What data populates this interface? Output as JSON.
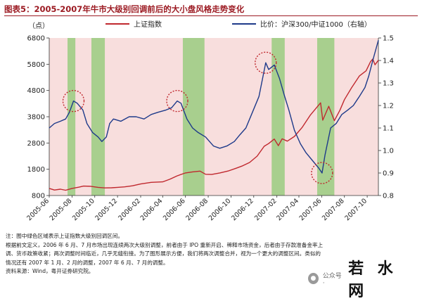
{
  "figure_title": "图表5：2005-2007年牛市大级别回调前后的大小盘风格走势变化",
  "chart_data": {
    "type": "line",
    "left_axis_unit": "（点）",
    "x_tick_labels": [
      "2005-06",
      "2005-08",
      "2005-10",
      "2005-12",
      "2006-02",
      "2006-04",
      "2006-06",
      "2006-08",
      "2006-10",
      "2006-12",
      "2007-02",
      "2007-04",
      "2007-06",
      "2007-08",
      "2007-10"
    ],
    "y_left": {
      "range": [
        800,
        6800
      ],
      "ticks": [
        800,
        1800,
        2800,
        3800,
        4800,
        5800,
        6800
      ]
    },
    "y_right": {
      "range": [
        0.8,
        1.5
      ],
      "ticks": [
        0.8,
        0.9,
        1.0,
        1.1,
        1.2,
        1.3,
        1.4,
        1.5
      ]
    },
    "background_shading": "#f8dedd",
    "highlight_color": "#a8cf8e",
    "highlighted_periods": [
      [
        "2005-07-20",
        "2005-08-10"
      ],
      [
        "2005-09-22",
        "2005-10-28"
      ],
      [
        "2006-05-25",
        "2006-07-22"
      ],
      [
        "2007-01-18",
        "2007-02-22"
      ],
      [
        "2007-05-20",
        "2007-07-05"
      ]
    ],
    "circled_points": [
      "2005-08-05",
      "2005-10-15",
      "2006-05-10",
      "2007-01-02",
      "2007-06-02"
    ],
    "series": [
      {
        "name": "上证指数",
        "axis": "left",
        "color": "#c0282e",
        "points": [
          [
            "2005-06-01",
            1070
          ],
          [
            "2005-06-15",
            1010
          ],
          [
            "2005-07-01",
            1040
          ],
          [
            "2005-07-15",
            1000
          ],
          [
            "2005-08-01",
            1070
          ],
          [
            "2005-08-20",
            1120
          ],
          [
            "2005-09-01",
            1160
          ],
          [
            "2005-09-20",
            1150
          ],
          [
            "2005-10-10",
            1110
          ],
          [
            "2005-10-28",
            1090
          ],
          [
            "2005-11-15",
            1095
          ],
          [
            "2005-12-01",
            1110
          ],
          [
            "2005-12-20",
            1130
          ],
          [
            "2006-01-10",
            1170
          ],
          [
            "2006-02-01",
            1240
          ],
          [
            "2006-03-01",
            1300
          ],
          [
            "2006-04-01",
            1320
          ],
          [
            "2006-04-20",
            1420
          ],
          [
            "2006-05-10",
            1550
          ],
          [
            "2006-06-01",
            1660
          ],
          [
            "2006-06-20",
            1700
          ],
          [
            "2006-07-10",
            1730
          ],
          [
            "2006-07-25",
            1610
          ],
          [
            "2006-08-10",
            1600
          ],
          [
            "2006-09-01",
            1660
          ],
          [
            "2006-09-25",
            1740
          ],
          [
            "2006-10-15",
            1840
          ],
          [
            "2006-11-01",
            1930
          ],
          [
            "2006-11-20",
            2060
          ],
          [
            "2006-12-10",
            2300
          ],
          [
            "2006-12-29",
            2675
          ],
          [
            "2007-01-10",
            2780
          ],
          [
            "2007-01-25",
            2950
          ],
          [
            "2007-02-05",
            2700
          ],
          [
            "2007-02-15",
            2960
          ],
          [
            "2007-03-01",
            2870
          ],
          [
            "2007-03-20",
            3050
          ],
          [
            "2007-04-10",
            3400
          ],
          [
            "2007-05-01",
            3850
          ],
          [
            "2007-05-29",
            4330
          ],
          [
            "2007-06-04",
            3670
          ],
          [
            "2007-06-20",
            4200
          ],
          [
            "2007-07-05",
            3650
          ],
          [
            "2007-07-20",
            4050
          ],
          [
            "2007-08-01",
            4450
          ],
          [
            "2007-08-20",
            4900
          ],
          [
            "2007-09-10",
            5350
          ],
          [
            "2007-09-28",
            5550
          ],
          [
            "2007-10-10",
            5900
          ],
          [
            "2007-10-16",
            6000
          ],
          [
            "2007-10-22",
            5780
          ],
          [
            "2007-10-31",
            5950
          ]
        ]
      },
      {
        "name": "比价：沪深300/中证1000（右轴）",
        "axis": "right",
        "color": "#1e3a8a",
        "points": [
          [
            "2005-06-01",
            1.1
          ],
          [
            "2005-06-15",
            1.12
          ],
          [
            "2005-07-01",
            1.13
          ],
          [
            "2005-07-15",
            1.14
          ],
          [
            "2005-07-25",
            1.17
          ],
          [
            "2005-08-05",
            1.22
          ],
          [
            "2005-08-15",
            1.21
          ],
          [
            "2005-08-30",
            1.18
          ],
          [
            "2005-09-10",
            1.12
          ],
          [
            "2005-09-25",
            1.08
          ],
          [
            "2005-10-10",
            1.06
          ],
          [
            "2005-10-20",
            1.04
          ],
          [
            "2005-11-01",
            1.06
          ],
          [
            "2005-11-10",
            1.12
          ],
          [
            "2005-11-20",
            1.14
          ],
          [
            "2005-12-10",
            1.13
          ],
          [
            "2006-01-01",
            1.15
          ],
          [
            "2006-01-20",
            1.15
          ],
          [
            "2006-02-10",
            1.14
          ],
          [
            "2006-03-01",
            1.16
          ],
          [
            "2006-03-20",
            1.17
          ],
          [
            "2006-04-10",
            1.18
          ],
          [
            "2006-04-25",
            1.19
          ],
          [
            "2006-05-10",
            1.22
          ],
          [
            "2006-05-20",
            1.21
          ],
          [
            "2006-06-05",
            1.14
          ],
          [
            "2006-06-20",
            1.1
          ],
          [
            "2006-07-05",
            1.08
          ],
          [
            "2006-07-25",
            1.06
          ],
          [
            "2006-08-15",
            1.02
          ],
          [
            "2006-09-01",
            1.01
          ],
          [
            "2006-09-20",
            1.02
          ],
          [
            "2006-10-10",
            1.04
          ],
          [
            "2006-10-25",
            1.07
          ],
          [
            "2006-11-10",
            1.1
          ],
          [
            "2006-11-25",
            1.16
          ],
          [
            "2006-12-15",
            1.24
          ],
          [
            "2007-01-02",
            1.39
          ],
          [
            "2007-01-10",
            1.36
          ],
          [
            "2007-01-25",
            1.38
          ],
          [
            "2007-02-08",
            1.32
          ],
          [
            "2007-02-20",
            1.25
          ],
          [
            "2007-03-05",
            1.18
          ],
          [
            "2007-03-20",
            1.09
          ],
          [
            "2007-04-05",
            1.03
          ],
          [
            "2007-04-20",
            0.99
          ],
          [
            "2007-05-10",
            0.95
          ],
          [
            "2007-05-25",
            0.92
          ],
          [
            "2007-06-02",
            0.9
          ],
          [
            "2007-06-10",
            0.98
          ],
          [
            "2007-06-25",
            1.1
          ],
          [
            "2007-07-10",
            1.12
          ],
          [
            "2007-07-25",
            1.16
          ],
          [
            "2007-08-10",
            1.18
          ],
          [
            "2007-08-25",
            1.2
          ],
          [
            "2007-09-10",
            1.24
          ],
          [
            "2007-09-25",
            1.28
          ],
          [
            "2007-10-05",
            1.33
          ],
          [
            "2007-10-16",
            1.4
          ],
          [
            "2007-10-31",
            1.49
          ]
        ]
      }
    ]
  },
  "notes": [
    "注：图中绿色区域表示上证指数大级别回调区间。",
    "根据前文定义，2006 年 6 月、7 月市场出现连续两次大级别调整，前者由于 IPO 重新开启、稀释市场资金，后者由于存款准备金率上",
    "调、货币政策收紧；两次调整时间临近，几乎无缝衔接。为了图形展示方便，我们将两次调整合并，视为一个更大的调整区间。类似的",
    "情况还有 2007 年 1 月、2 月的调整，2007 年 6 月、7 月的调整。",
    "资料来源：Wind，粤开证券研究院。"
  ],
  "watermark": {
    "icon": "wechat-icon",
    "text": "公众号 ·",
    "brand": "若 水 网"
  }
}
